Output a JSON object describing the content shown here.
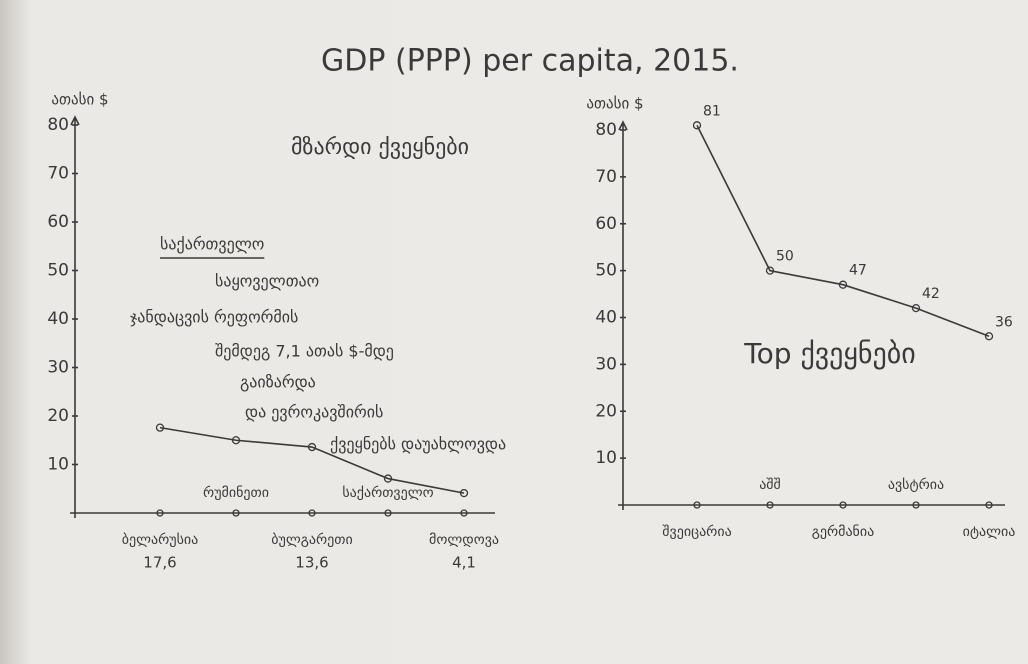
{
  "title": "GDP (PPP) per capita, 2015.",
  "chart_data": [
    {
      "type": "line",
      "title": "მზარდი ქვეყნები",
      "y_label": "ათასი $",
      "categories": [
        "ბელარუსია",
        "რუმინეთი",
        "ბულგარეთი",
        "საქართველო",
        "მოლდოვა"
      ],
      "series": [
        {
          "color": "#3a3a3a",
          "values": [
            17.6,
            15,
            13.6,
            7.1,
            4.1
          ],
          "value_labels": [
            "17,6",
            null,
            "13,6",
            null,
            "4,1"
          ]
        }
      ],
      "ylim": [
        0,
        80
      ],
      "yticks": [
        10,
        20,
        30,
        40,
        50,
        60,
        70,
        80
      ],
      "annotation": [
        "საქართველო",
        "საყოველთაო",
        "ჯანდაცვის რეფორმის",
        "შემდეგ 7,1 ათას $-მდე",
        "გაიზარდა",
        "და ევროკავშირის",
        "ქვეყნებს დაუახლოვდა"
      ]
    },
    {
      "type": "line",
      "title": "Top ქვეყნები",
      "y_label": "ათასი $",
      "categories": [
        "შვეიცარია",
        "აშშ",
        "გერმანია",
        "ავსტრია",
        "იტალია"
      ],
      "series": [
        {
          "color": "#3a3a3a",
          "values": [
            81,
            50,
            47,
            42,
            36
          ]
        }
      ],
      "ylim": [
        0,
        80
      ],
      "yticks": [
        10,
        20,
        30,
        40,
        50,
        60,
        70,
        80
      ]
    }
  ]
}
